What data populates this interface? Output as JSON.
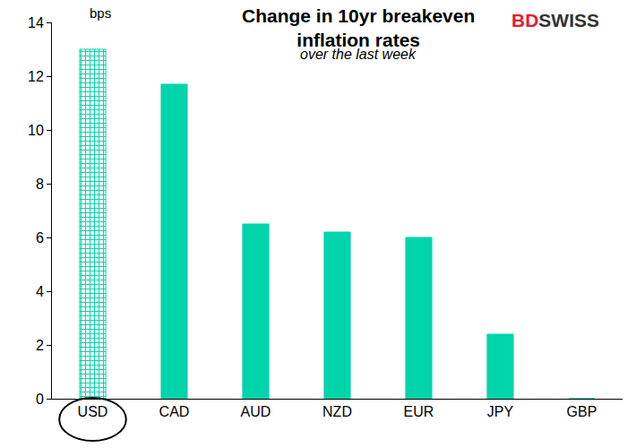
{
  "chart_data": {
    "type": "bar",
    "title": "Change in 10yr breakeven\ninflation rates",
    "subtitle": "over the last week",
    "ylabel": "bps",
    "annotations": [
      {
        "text": "BD",
        "color": "#e4202e"
      },
      {
        "text": "SWISS",
        "color": "#333333"
      }
    ],
    "categories": [
      "USD",
      "CAD",
      "AUD",
      "NZD",
      "EUR",
      "JPY",
      "GBP"
    ],
    "values": [
      13,
      11.7,
      6.5,
      6.2,
      6.0,
      2.4,
      0
    ],
    "color": "#00d4aa",
    "ylim": [
      0,
      14
    ],
    "yticks": [
      0,
      2,
      4,
      6,
      8,
      10,
      12,
      14
    ],
    "grid": false
  }
}
